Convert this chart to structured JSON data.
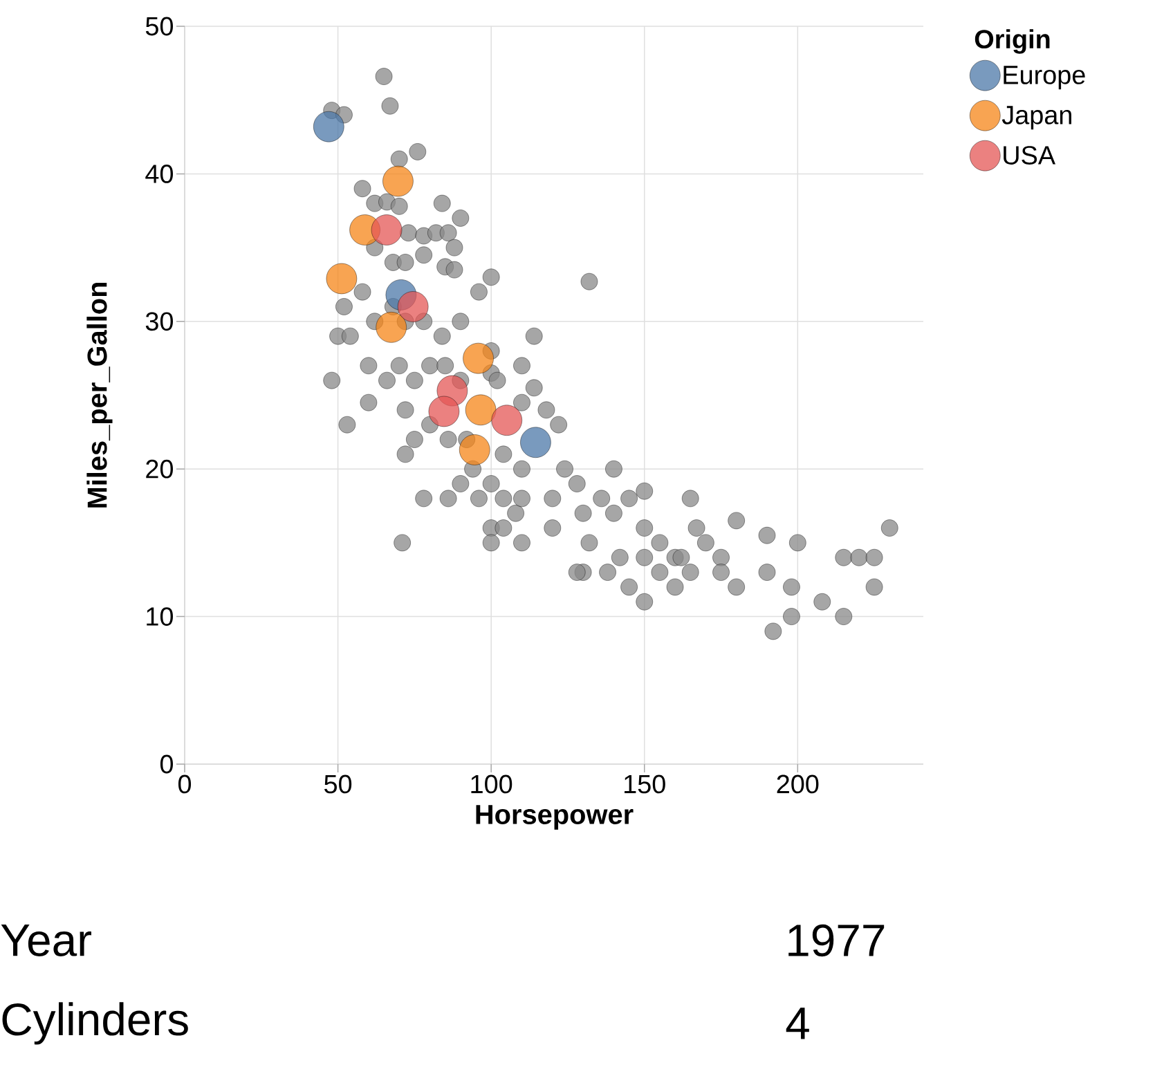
{
  "chart_data": {
    "type": "scatter",
    "xlabel": "Horsepower",
    "ylabel": "Miles_per_Gallon",
    "legend_title": "Origin",
    "xlim": [
      0,
      241
    ],
    "ylim": [
      0,
      50
    ],
    "xticks": [
      0,
      50,
      100,
      150,
      200
    ],
    "yticks": [
      0,
      10,
      20,
      30,
      40,
      50
    ],
    "grid": true,
    "legend": "top right",
    "series": [
      {
        "color": "#888888",
        "x": [
          48,
          52,
          65,
          67,
          48,
          70,
          76,
          58,
          62,
          66,
          70,
          73,
          78,
          82,
          86,
          88,
          90,
          84,
          62,
          68,
          72,
          78,
          85,
          88,
          100,
          96,
          132,
          52,
          58,
          62,
          68,
          72,
          78,
          84,
          90,
          50,
          54,
          60,
          66,
          70,
          75,
          80,
          85,
          90,
          100,
          100,
          102,
          110,
          114,
          114,
          118,
          110,
          122,
          60,
          53,
          72,
          75,
          80,
          86,
          92,
          98,
          104,
          110,
          72,
          78,
          86,
          90,
          94,
          100,
          104,
          108,
          96,
          100,
          104,
          110,
          100,
          110,
          71,
          120,
          120,
          124,
          128,
          130,
          132,
          136,
          140,
          140,
          145,
          150,
          150,
          150,
          142,
          138,
          145,
          150,
          155,
          160,
          165,
          167,
          170,
          175,
          180,
          180,
          190,
          200,
          190,
          198,
          198,
          192,
          208,
          215,
          215,
          220,
          225,
          225,
          230,
          175,
          165,
          160,
          130,
          128,
          155,
          162
        ],
        "values": [
          44.3,
          44,
          46.6,
          44.6,
          26,
          41,
          41.5,
          39,
          38,
          38.1,
          37.8,
          36,
          35.8,
          36,
          36,
          35,
          37,
          38,
          35,
          34,
          34,
          34.5,
          33.7,
          33.5,
          33,
          32,
          32.7,
          31,
          32,
          30,
          31,
          30,
          30,
          29,
          30,
          29,
          29,
          27,
          26,
          27,
          26,
          27,
          27,
          26,
          28,
          26.5,
          26,
          27,
          29,
          25.5,
          24,
          24.5,
          23,
          24.5,
          23,
          24,
          22,
          23,
          22,
          22,
          null,
          21,
          20,
          21,
          18,
          18,
          19,
          20,
          19,
          18,
          17,
          18,
          16,
          16,
          15,
          15,
          18,
          15,
          18,
          16,
          20,
          19,
          17,
          15,
          18,
          20,
          17,
          18,
          18.5,
          16,
          14,
          14,
          13,
          12,
          11,
          13,
          14,
          18,
          16,
          15,
          14,
          16.5,
          12,
          15.5,
          15,
          13,
          12,
          10,
          9,
          11,
          14,
          10,
          14,
          14,
          12,
          16,
          13,
          13,
          12,
          13,
          13,
          15,
          14
        ]
      },
      {
        "name": "Europe",
        "color": "#4c78a8",
        "x": [
          47,
          70.6,
          114.5
        ],
        "values": [
          43.2,
          31.8,
          21.8
        ]
      },
      {
        "name": "Japan",
        "color": "#f58518",
        "x": [
          69.6,
          58.8,
          51.2,
          67.4,
          95.8,
          96.6,
          94.6
        ],
        "values": [
          39.5,
          36.2,
          32.9,
          29.6,
          27.5,
          24.0,
          21.3
        ]
      },
      {
        "name": "USA",
        "color": "#e45756",
        "x": [
          65.9,
          74.5,
          87.3,
          84.6,
          105.1
        ],
        "values": [
          36.2,
          31.0,
          25.3,
          23.9,
          23.3
        ]
      }
    ],
    "annotations": [
      "Year",
      "1977",
      "Cylinders",
      "4"
    ]
  }
}
